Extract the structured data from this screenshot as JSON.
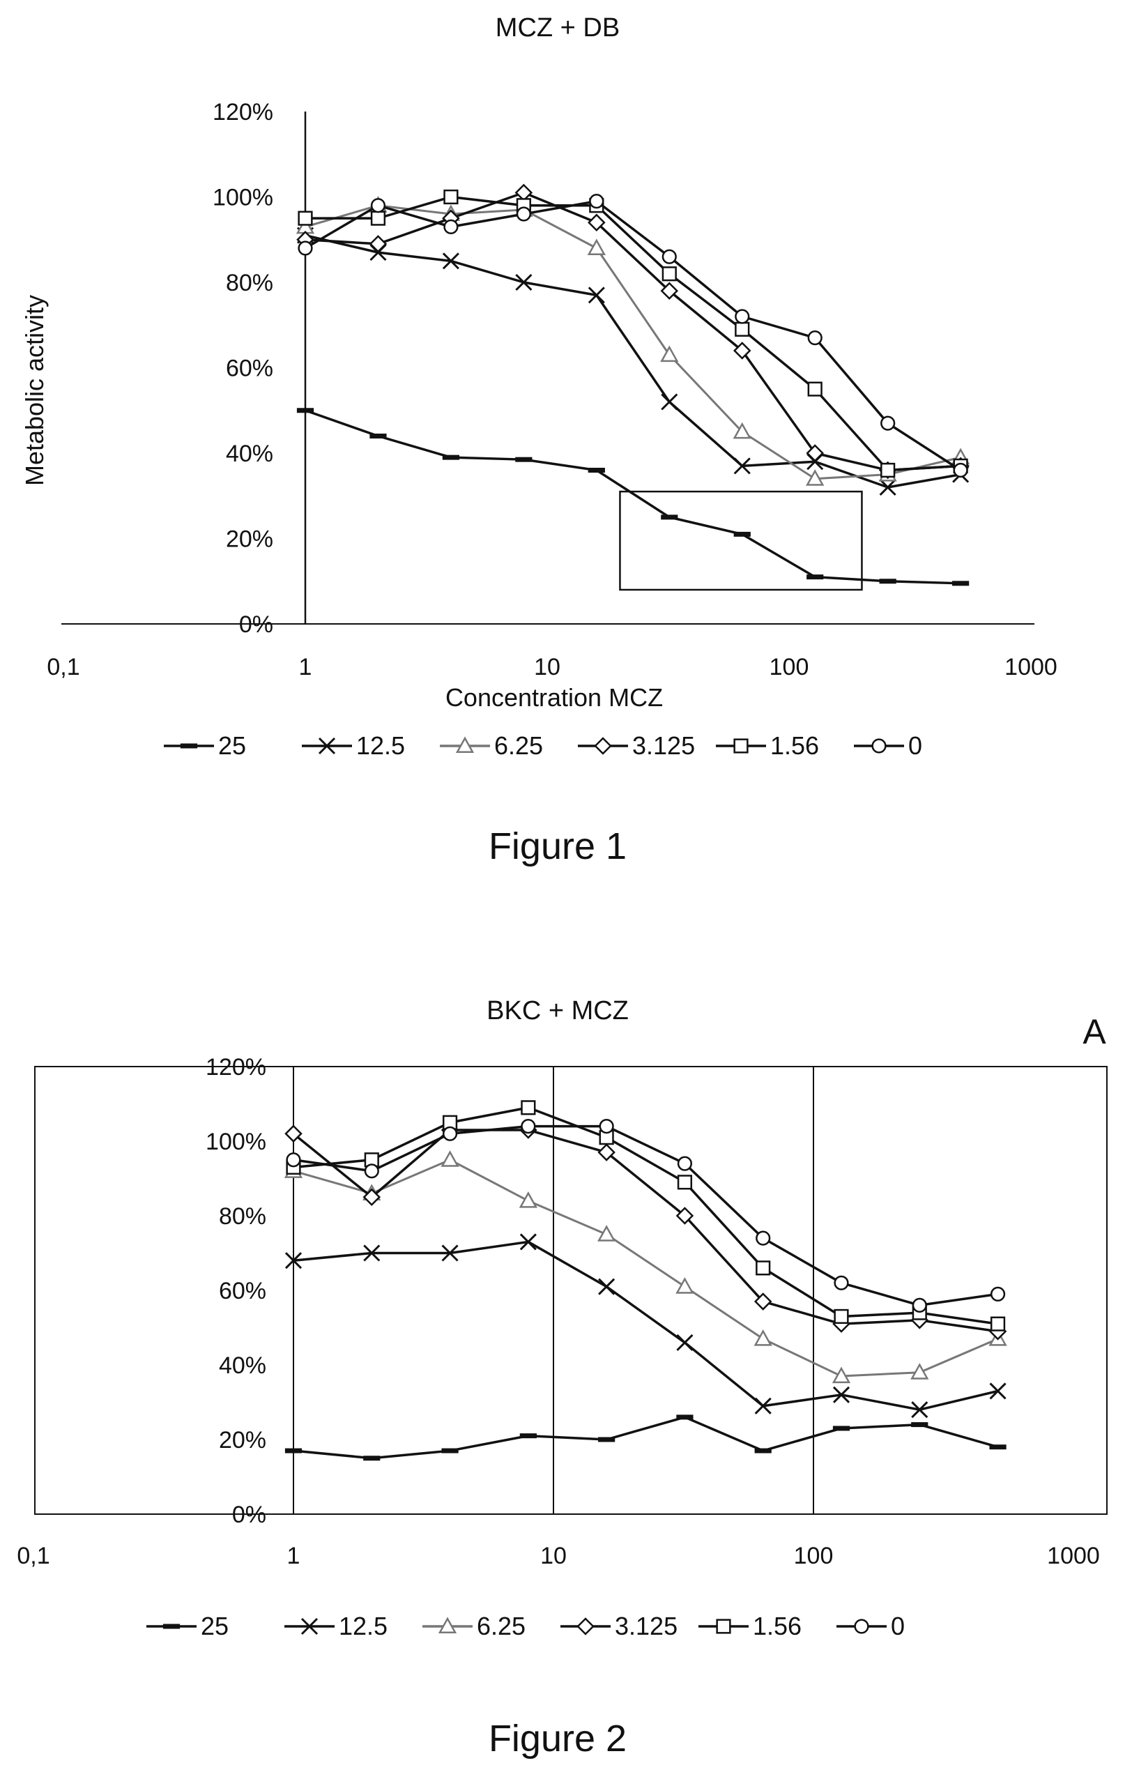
{
  "figures": [
    {
      "caption": "Figure 1",
      "panel_label": ""
    },
    {
      "caption": "Figure 2",
      "panel_label": "A"
    }
  ],
  "chart_data": [
    {
      "type": "line",
      "title": "MCZ + DB",
      "xlabel": "Concentration MCZ",
      "ylabel": "Metabolic activity",
      "x_scale": "log",
      "xlim": [
        0.1,
        1000
      ],
      "ylim": [
        0,
        1.2
      ],
      "x_tick_labels": [
        "0,1",
        "1",
        "10",
        "100",
        "1000"
      ],
      "y_tick_labels": [
        "0%",
        "20%",
        "40%",
        "60%",
        "80%",
        "100%",
        "120%"
      ],
      "grid": false,
      "legend_position": "bottom",
      "x": [
        1,
        2,
        4,
        8,
        16,
        32,
        64,
        128,
        256,
        512
      ],
      "series": [
        {
          "name": "25",
          "marker": "dash",
          "color": "#111111",
          "values": [
            0.5,
            0.44,
            0.39,
            0.385,
            0.36,
            0.25,
            0.21,
            0.11,
            0.1,
            0.095
          ]
        },
        {
          "name": "12.5",
          "marker": "x",
          "color": "#111111",
          "values": [
            0.91,
            0.87,
            0.85,
            0.8,
            0.77,
            0.52,
            0.37,
            0.38,
            0.32,
            0.35
          ]
        },
        {
          "name": "6.25",
          "marker": "triangle",
          "color": "#777777",
          "values": [
            0.93,
            0.98,
            0.96,
            0.97,
            0.88,
            0.63,
            0.45,
            0.34,
            0.35,
            0.39
          ]
        },
        {
          "name": "3.125",
          "marker": "diamond",
          "color": "#111111",
          "values": [
            0.9,
            0.89,
            0.95,
            1.01,
            0.94,
            0.78,
            0.64,
            0.4,
            0.36,
            0.37
          ]
        },
        {
          "name": "1.56",
          "marker": "square",
          "color": "#111111",
          "values": [
            0.95,
            0.95,
            1.0,
            0.98,
            0.98,
            0.82,
            0.69,
            0.55,
            0.36,
            0.37
          ]
        },
        {
          "name": "0",
          "marker": "circle",
          "color": "#111111",
          "values": [
            0.88,
            0.98,
            0.93,
            0.96,
            0.99,
            0.86,
            0.72,
            0.67,
            0.47,
            0.36
          ]
        }
      ],
      "annotations": [
        {
          "type": "rectangle",
          "x_range": [
            20,
            200
          ],
          "y_range": [
            0.08,
            0.31
          ]
        }
      ]
    },
    {
      "type": "line",
      "title": "BKC + MCZ",
      "xlabel": "",
      "ylabel": "",
      "x_scale": "log",
      "xlim": [
        0.1,
        1000
      ],
      "ylim": [
        0,
        1.2
      ],
      "x_tick_labels": [
        "0,1",
        "1",
        "10",
        "100",
        "1000"
      ],
      "y_tick_labels": [
        "0%",
        "20%",
        "40%",
        "60%",
        "80%",
        "100%",
        "120%"
      ],
      "grid": true,
      "legend_position": "bottom",
      "x": [
        1,
        2,
        4,
        8,
        16,
        32,
        64,
        128,
        256,
        512
      ],
      "series": [
        {
          "name": "25",
          "marker": "dash",
          "color": "#111111",
          "values": [
            0.17,
            0.15,
            0.17,
            0.21,
            0.2,
            0.26,
            0.17,
            0.23,
            0.24,
            0.18
          ]
        },
        {
          "name": "12.5",
          "marker": "x",
          "color": "#111111",
          "values": [
            0.68,
            0.7,
            0.7,
            0.73,
            0.61,
            0.46,
            0.29,
            0.32,
            0.28,
            0.33
          ]
        },
        {
          "name": "6.25",
          "marker": "triangle",
          "color": "#777777",
          "values": [
            0.92,
            0.86,
            0.95,
            0.84,
            0.75,
            0.61,
            0.47,
            0.37,
            0.38,
            0.47
          ]
        },
        {
          "name": "3.125",
          "marker": "diamond",
          "color": "#111111",
          "values": [
            1.02,
            0.85,
            1.03,
            1.03,
            0.97,
            0.8,
            0.57,
            0.51,
            0.52,
            0.49
          ]
        },
        {
          "name": "1.56",
          "marker": "square",
          "color": "#111111",
          "values": [
            0.93,
            0.95,
            1.05,
            1.09,
            1.01,
            0.89,
            0.66,
            0.53,
            0.54,
            0.51
          ]
        },
        {
          "name": "0",
          "marker": "circle",
          "color": "#111111",
          "values": [
            0.95,
            0.92,
            1.02,
            1.04,
            1.04,
            0.94,
            0.74,
            0.62,
            0.56,
            0.59
          ]
        }
      ],
      "annotations": []
    }
  ]
}
